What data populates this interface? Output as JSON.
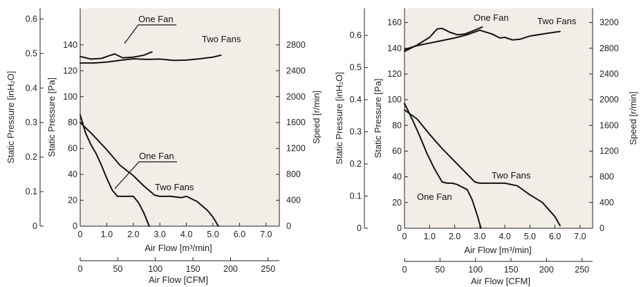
{
  "chart_data": [
    {
      "type": "line",
      "panel": "left",
      "plot_background": "#f2ede6",
      "x_primary": {
        "label": "Air Flow [m³/min]",
        "range": [
          0,
          7.5
        ],
        "ticks": [
          "0",
          "1.0",
          "2.0",
          "3.0",
          "4.0",
          "5.0",
          "6.0",
          "7.0"
        ]
      },
      "x_secondary": {
        "label": "Air Flow [CFM]",
        "range": [
          0,
          264.9
        ],
        "ticks": [
          "0",
          "50",
          "100",
          "150",
          "200",
          "250"
        ]
      },
      "y_left_outer": {
        "label": "Static Pressure [inH₂O]",
        "range": [
          0,
          0.6
        ],
        "ticks": [
          "0",
          "0.1",
          "0.2",
          "0.3",
          "0.4",
          "0.5",
          "0.6"
        ]
      },
      "y_left_inner": {
        "label": "Static Pressure [Pa]",
        "range": [
          0,
          160
        ],
        "ticks": [
          "0",
          "20",
          "40",
          "60",
          "80",
          "100",
          "120",
          "140"
        ]
      },
      "y_right": {
        "label": "Speed [r/min]",
        "range": [
          0,
          3200
        ],
        "ticks": [
          "0",
          "400",
          "800",
          "1200",
          "1600",
          "2000",
          "2400",
          "2800"
        ]
      },
      "series": [
        {
          "name": "One Fan",
          "kind": "pressure",
          "x": [
            0,
            0.2,
            0.4,
            0.6,
            0.8,
            1.0,
            1.2,
            1.4,
            1.6,
            1.8,
            2.0,
            2.2,
            2.4,
            2.6
          ],
          "y": [
            86,
            72,
            63,
            56,
            47,
            37,
            28,
            23,
            23,
            23,
            23,
            18,
            10,
            0
          ]
        },
        {
          "name": "Two Fans",
          "kind": "pressure",
          "x": [
            0,
            0.5,
            1.0,
            1.5,
            2.0,
            2.4,
            2.8,
            3.0,
            3.4,
            3.8,
            4.0,
            4.4,
            4.8,
            5.0,
            5.2
          ],
          "y": [
            80,
            70,
            59,
            47,
            39,
            31,
            24,
            23,
            23,
            22,
            23,
            19,
            12,
            7,
            0
          ]
        },
        {
          "name": "One Fan",
          "kind": "speed",
          "x": [
            0,
            0.4,
            0.8,
            1.0,
            1.3,
            1.6,
            2.0,
            2.4,
            2.7
          ],
          "y": [
            2620,
            2580,
            2590,
            2620,
            2660,
            2600,
            2610,
            2640,
            2690
          ]
        },
        {
          "name": "Two Fans",
          "kind": "speed",
          "x": [
            0,
            0.5,
            1.0,
            1.5,
            2.0,
            2.5,
            3.0,
            3.5,
            4.0,
            4.5,
            5.0,
            5.3
          ],
          "y": [
            2520,
            2520,
            2535,
            2560,
            2585,
            2575,
            2580,
            2560,
            2565,
            2585,
            2610,
            2640
          ]
        }
      ],
      "annotations": [
        "One Fan",
        "Two Fans",
        "One Fan",
        "Two Fans"
      ]
    },
    {
      "type": "line",
      "panel": "right",
      "plot_background": "#f2ede6",
      "x_primary": {
        "label": "Air Flow [m³/min]",
        "range": [
          0,
          7.5
        ],
        "ticks": [
          "0",
          "1.0",
          "2.0",
          "3.0",
          "4.0",
          "5.0",
          "6.0",
          "7.0"
        ]
      },
      "x_secondary": {
        "label": "Air Flow [CFM]",
        "range": [
          0,
          264.9
        ],
        "ticks": [
          "0",
          "50",
          "100",
          "150",
          "200",
          "250"
        ]
      },
      "y_left_outer": {
        "label": "Static Pressure [inH₂O]",
        "range": [
          0,
          0.68
        ],
        "ticks": [
          "0",
          "0.1",
          "0.2",
          "0.3",
          "0.4",
          "0.5",
          "0.6"
        ]
      },
      "y_left_inner": {
        "label": "Static Pressure [Pa]",
        "range": [
          0,
          170
        ],
        "ticks": [
          "0",
          "20",
          "40",
          "60",
          "80",
          "100",
          "120",
          "140",
          "160"
        ]
      },
      "y_right": {
        "label": "Speed [r/min]",
        "range": [
          0,
          3400
        ],
        "ticks": [
          "0",
          "400",
          "800",
          "1200",
          "1600",
          "2000",
          "2400",
          "2800",
          "3200"
        ]
      },
      "series": [
        {
          "name": "One Fan",
          "kind": "pressure",
          "x": [
            0,
            0.3,
            0.6,
            0.9,
            1.2,
            1.5,
            1.7,
            1.9,
            2.1,
            2.3,
            2.5,
            2.7,
            2.9,
            3.05
          ],
          "y": [
            97,
            85,
            72,
            58,
            46,
            36,
            35,
            35,
            34,
            32,
            30,
            22,
            10,
            0
          ]
        },
        {
          "name": "Two Fans",
          "kind": "pressure",
          "x": [
            0,
            0.5,
            1.0,
            1.5,
            2.0,
            2.5,
            2.8,
            3.0,
            3.5,
            4.0,
            4.5,
            5.0,
            5.5,
            6.0,
            6.2
          ],
          "y": [
            92,
            85,
            73,
            62,
            52,
            42,
            36,
            35,
            35,
            35,
            33,
            26,
            20,
            9,
            2
          ]
        },
        {
          "name": "One Fan",
          "kind": "speed",
          "x": [
            0,
            0.5,
            1.0,
            1.3,
            1.5,
            1.8,
            2.1,
            2.4,
            2.8,
            3.1
          ],
          "y": [
            2750,
            2850,
            2970,
            3100,
            3110,
            3050,
            3010,
            3020,
            3080,
            3130
          ]
        },
        {
          "name": "Two Fans",
          "kind": "speed",
          "x": [
            0,
            0.5,
            1.0,
            1.5,
            2.0,
            2.5,
            3.0,
            3.5,
            3.8,
            4.0,
            4.3,
            4.6,
            5.0,
            5.5,
            6.0,
            6.2
          ],
          "y": [
            2780,
            2840,
            2880,
            2920,
            2960,
            3010,
            3080,
            3020,
            2960,
            2970,
            2930,
            2940,
            2990,
            3020,
            3050,
            3060
          ]
        }
      ],
      "annotations": [
        "One Fan",
        "Two Fans",
        "One Fan",
        "Two Fans"
      ]
    }
  ]
}
